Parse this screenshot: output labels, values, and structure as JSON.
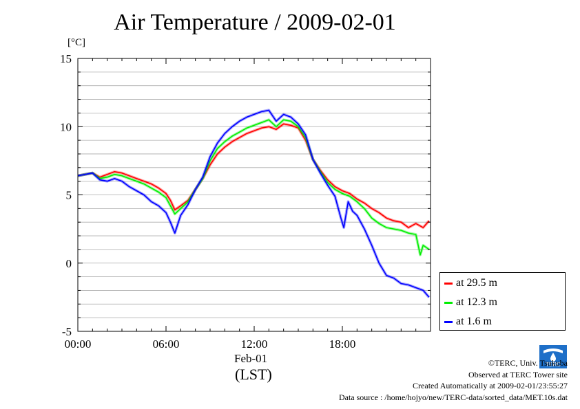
{
  "chart_data": {
    "type": "line",
    "title": "Air Temperature / 2009-02-01",
    "ylabel": "[°C]",
    "xlabel": "Feb-01",
    "xlabel2": "(LST)",
    "ylim": [
      -5,
      15
    ],
    "yticks": [
      "15",
      "10",
      "5",
      "0",
      "-5"
    ],
    "xlim": [
      0,
      24
    ],
    "xticks": [
      "00:00",
      "06:00",
      "12:00",
      "18:00"
    ],
    "grid": true,
    "legend_position": "right, outside plot",
    "series": [
      {
        "name": "at 29.5 m",
        "color": "#ff0000",
        "x": [
          0,
          0.5,
          1,
          1.5,
          2,
          2.5,
          3,
          3.5,
          4,
          4.5,
          5,
          5.5,
          6,
          6.3,
          6.6,
          7,
          7.5,
          8,
          8.5,
          9,
          9.5,
          10,
          10.5,
          11,
          11.5,
          12,
          12.5,
          13,
          13.5,
          14,
          14.5,
          15,
          15.5,
          16,
          16.5,
          17,
          17.5,
          18,
          18.5,
          19,
          19.5,
          20,
          20.5,
          21,
          21.5,
          22,
          22.5,
          23,
          23.5,
          23.9
        ],
        "y": [
          6.4,
          6.5,
          6.6,
          6.3,
          6.5,
          6.7,
          6.6,
          6.4,
          6.2,
          6.0,
          5.8,
          5.5,
          5.1,
          4.6,
          3.9,
          4.2,
          4.6,
          5.4,
          6.2,
          7.2,
          8.0,
          8.5,
          8.9,
          9.2,
          9.5,
          9.7,
          9.9,
          10.0,
          9.8,
          10.2,
          10.1,
          9.9,
          9.0,
          7.6,
          6.8,
          6.1,
          5.6,
          5.3,
          5.1,
          4.7,
          4.4,
          4.0,
          3.7,
          3.3,
          3.1,
          3.0,
          2.6,
          2.9,
          2.6,
          3.1
        ]
      },
      {
        "name": "at 12.3 m",
        "color": "#00ee00",
        "x": [
          0,
          0.5,
          1,
          1.5,
          2,
          2.5,
          3,
          3.5,
          4,
          4.5,
          5,
          5.5,
          6,
          6.3,
          6.6,
          7,
          7.5,
          8,
          8.5,
          9,
          9.5,
          10,
          10.5,
          11,
          11.5,
          12,
          12.5,
          13,
          13.5,
          14,
          14.5,
          15,
          15.5,
          16,
          16.5,
          17,
          17.5,
          18,
          18.5,
          19,
          19.5,
          20,
          20.5,
          21,
          21.5,
          22,
          22.5,
          23,
          23.3,
          23.5,
          23.9
        ],
        "y": [
          6.4,
          6.5,
          6.6,
          6.2,
          6.3,
          6.5,
          6.4,
          6.2,
          6.0,
          5.8,
          5.5,
          5.2,
          4.8,
          4.2,
          3.6,
          4.0,
          4.5,
          5.4,
          6.2,
          7.5,
          8.4,
          8.9,
          9.3,
          9.6,
          9.9,
          10.1,
          10.3,
          10.5,
          10.0,
          10.5,
          10.4,
          10.0,
          9.2,
          7.6,
          6.7,
          5.9,
          5.4,
          5.1,
          4.9,
          4.5,
          4.0,
          3.3,
          2.9,
          2.6,
          2.5,
          2.4,
          2.2,
          2.1,
          0.6,
          1.3,
          1.0
        ]
      },
      {
        "name": "at 1.6 m",
        "color": "#0000ff",
        "x": [
          0,
          0.5,
          1,
          1.5,
          2,
          2.5,
          3,
          3.5,
          4,
          4.5,
          5,
          5.5,
          6,
          6.3,
          6.6,
          7,
          7.5,
          8,
          8.5,
          9,
          9.5,
          10,
          10.5,
          11,
          11.5,
          12,
          12.5,
          13,
          13.5,
          14,
          14.5,
          15,
          15.5,
          16,
          16.5,
          17,
          17.5,
          17.9,
          18.1,
          18.4,
          18.7,
          19,
          19.5,
          20,
          20.5,
          21,
          21.5,
          22,
          22.5,
          23,
          23.5,
          23.9
        ],
        "y": [
          6.4,
          6.5,
          6.6,
          6.1,
          6.0,
          6.2,
          6.0,
          5.6,
          5.3,
          5.0,
          4.5,
          4.2,
          3.7,
          3.0,
          2.2,
          3.5,
          4.3,
          5.4,
          6.3,
          7.8,
          8.8,
          9.5,
          10.0,
          10.4,
          10.7,
          10.9,
          11.1,
          11.2,
          10.4,
          10.9,
          10.7,
          10.2,
          9.4,
          7.6,
          6.6,
          5.7,
          4.9,
          3.3,
          2.6,
          4.5,
          3.8,
          3.5,
          2.5,
          1.3,
          0.0,
          -0.9,
          -1.1,
          -1.5,
          -1.6,
          -1.8,
          -2.0,
          -2.5
        ]
      }
    ]
  },
  "footer": {
    "copyright": "©TERC, Univ. Tsukuba",
    "observed": "Observed at TERC Tower site",
    "created": "Created Automatically at 2009-02-01/23:55:27",
    "source": "Data source : /home/hojyo/new/TERC-data/sorted_data/MET.10s.dat"
  },
  "logo": {
    "text": "TERC",
    "icon": "terc-logo-icon",
    "color": "#1e6fc8"
  }
}
